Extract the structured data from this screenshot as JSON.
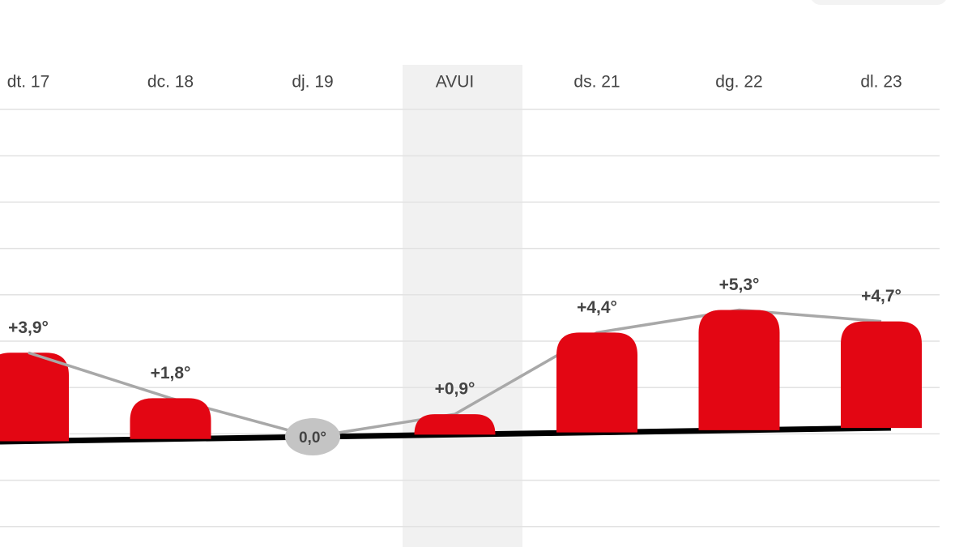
{
  "chart_data": {
    "type": "bar",
    "categories": [
      "dt. 17",
      "dc. 18",
      "dj. 19",
      "AVUI",
      "ds. 21",
      "dg. 22",
      "dl. 23"
    ],
    "values": [
      3.9,
      1.8,
      0.0,
      0.9,
      4.4,
      5.3,
      4.7
    ],
    "value_labels": [
      "+3,9°",
      "+1,8°",
      "0,0°",
      "+0,9°",
      "+4,4°",
      "+5,3°",
      "+4,7°"
    ],
    "color": "#e30613",
    "line_color": "#a8a8a8"
  }
}
